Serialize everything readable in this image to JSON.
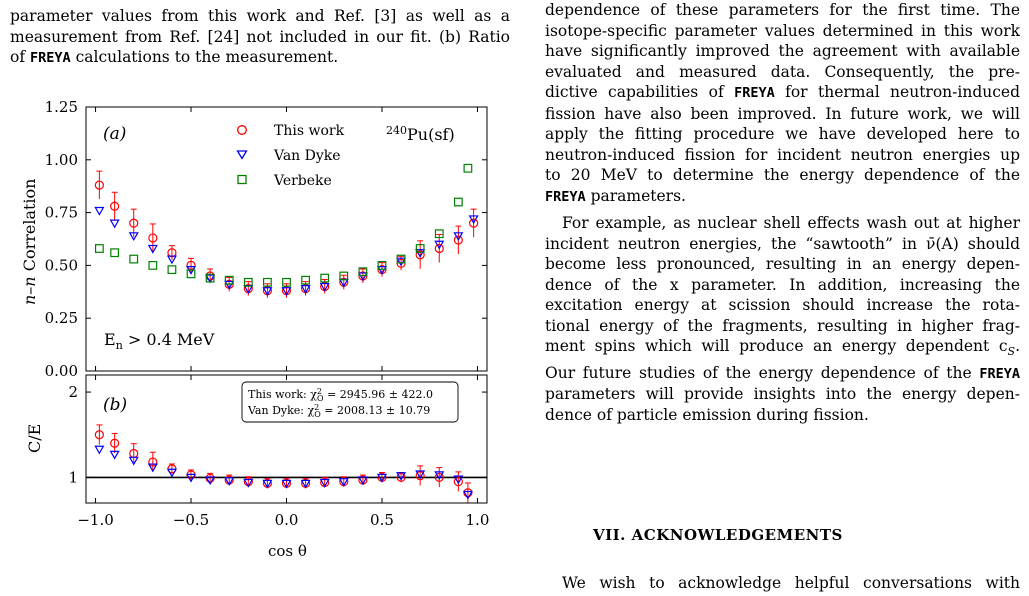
{
  "left_caption": {
    "line1": "parameter values from this work and Ref. [3] as well as a",
    "line2": "measurement from Ref. [24] not included in our fit. (b) Ratio",
    "line3_pre": "of ",
    "line3_code": "FREYA",
    "line3_post": " calculations to the measurement."
  },
  "right_column": {
    "p1_line0": "dependence of these parameters for the first time. The",
    "p1_line1": "isotope-specific parameter values determined in this work",
    "p1_line2": "have significantly improved the agreement with available",
    "p1_line3": "evaluated and measured data. Consequently, the pre-",
    "p1_line4_pre": "dictive capabilities of ",
    "p1_line4_code": "FREYA",
    "p1_line4_post": " for thermal neutron-induced",
    "p1_line5": "fission have also been improved. In future work, we will",
    "p1_line6": "apply the fitting procedure we have developed here to",
    "p1_line7": "neutron-induced fission for incident neutron energies up",
    "p1_line8": "to 20 MeV to determine the energy dependence of the",
    "p1_line9_code": "FREYA",
    "p1_line9_post": " parameters.",
    "p2_line0": "For example, as nuclear shell effects wash out at higher",
    "p2_line1": "incident neutron energies, the “sawtooth” in ν̄(A) should",
    "p2_line2": "become less pronounced, resulting in an energy depen-",
    "p2_line3": "dence of the x parameter. In addition, increasing the",
    "p2_line4": "excitation energy at scission should increase the rota-",
    "p2_line5": "tional energy of the fragments, resulting in higher frag-",
    "p2_line6": "ment spins which will produce an energy dependent c",
    "p2_line6_sub": "S",
    "p2_line6_end": ".",
    "p2_line7_pre": "Our future studies of the energy dependence of the ",
    "p2_line7_code": "FREYA",
    "p2_line8": "parameters will provide insights into the energy depen-",
    "p2_line9": "dence of particle emission during fission."
  },
  "ack": {
    "heading": "VII. ACKNOWLEDGEMENTS",
    "text": "We wish to acknowledge helpful conversations with"
  },
  "figure": {
    "panel_a_label": "(a)",
    "panel_b_label": "(b)",
    "isotope_label": "240Pu(sf)",
    "energy_cut": "En > 0.4 MeV",
    "ylabel_a": "n–n Correlation",
    "ylabel_b": "C/E",
    "xlabel": "cos θ",
    "legend": [
      "This work",
      "Van Dyke",
      "Verbeke"
    ],
    "chi_this_work": "This work: χ²O = 2945.96 ± 422.0",
    "chi_van_dyke": "Van Dyke: χ²O = 2008.13 ± 10.79",
    "colors": {
      "this_work": "#ff0000",
      "van_dyke": "#0000ff",
      "verbeke": "#008000"
    }
  },
  "chart_data": [
    {
      "type": "scatter",
      "panel": "a",
      "xlabel": "cos θ",
      "ylabel": "n–n Correlation",
      "xlim": [
        -1.05,
        1.05
      ],
      "ylim": [
        0.0,
        1.25
      ],
      "yticks": [
        0.0,
        0.25,
        0.5,
        0.75,
        1.0,
        1.25
      ],
      "xticks": [
        -1.0,
        -0.5,
        0.0,
        0.5,
        1.0
      ],
      "legend_position": "top-right",
      "series": [
        {
          "name": "This work",
          "marker": "circle",
          "x": [
            -0.98,
            -0.9,
            -0.8,
            -0.7,
            -0.6,
            -0.5,
            -0.4,
            -0.3,
            -0.2,
            -0.1,
            0.0,
            0.1,
            0.2,
            0.3,
            0.4,
            0.5,
            0.6,
            0.7,
            0.8,
            0.9,
            0.98
          ],
          "y": [
            0.88,
            0.78,
            0.7,
            0.63,
            0.56,
            0.5,
            0.45,
            0.41,
            0.39,
            0.38,
            0.38,
            0.39,
            0.4,
            0.42,
            0.45,
            0.48,
            0.51,
            0.55,
            0.58,
            0.62,
            0.7
          ]
        },
        {
          "name": "Van Dyke",
          "marker": "triangle-down",
          "x": [
            -0.98,
            -0.9,
            -0.8,
            -0.7,
            -0.6,
            -0.5,
            -0.4,
            -0.3,
            -0.2,
            -0.1,
            0.0,
            0.1,
            0.2,
            0.3,
            0.4,
            0.5,
            0.6,
            0.7,
            0.8,
            0.9,
            0.98
          ],
          "y": [
            0.76,
            0.7,
            0.64,
            0.58,
            0.53,
            0.48,
            0.44,
            0.41,
            0.39,
            0.38,
            0.38,
            0.39,
            0.4,
            0.42,
            0.45,
            0.48,
            0.52,
            0.56,
            0.6,
            0.64,
            0.72
          ]
        },
        {
          "name": "Verbeke",
          "marker": "square",
          "x": [
            -0.98,
            -0.9,
            -0.8,
            -0.7,
            -0.6,
            -0.5,
            -0.4,
            -0.3,
            -0.2,
            -0.1,
            0.0,
            0.1,
            0.2,
            0.3,
            0.4,
            0.5,
            0.6,
            0.7,
            0.8,
            0.9,
            0.95
          ],
          "y": [
            0.58,
            0.56,
            0.53,
            0.5,
            0.48,
            0.46,
            0.44,
            0.43,
            0.42,
            0.42,
            0.42,
            0.43,
            0.44,
            0.45,
            0.47,
            0.5,
            0.53,
            0.58,
            0.65,
            0.8,
            0.96
          ]
        }
      ]
    },
    {
      "type": "scatter",
      "panel": "b",
      "xlabel": "cos θ",
      "ylabel": "C/E",
      "xlim": [
        -1.05,
        1.05
      ],
      "ylim": [
        0.7,
        2.2
      ],
      "yticks": [
        1,
        2
      ],
      "xticks": [
        -1.0,
        -0.5,
        0.0,
        0.5,
        1.0
      ],
      "reference_line": 1,
      "series": [
        {
          "name": "This work",
          "marker": "circle",
          "x": [
            -0.98,
            -0.9,
            -0.8,
            -0.7,
            -0.6,
            -0.5,
            -0.4,
            -0.3,
            -0.2,
            -0.1,
            0.0,
            0.1,
            0.2,
            0.3,
            0.4,
            0.5,
            0.6,
            0.7,
            0.8,
            0.9,
            0.95
          ],
          "y": [
            1.5,
            1.4,
            1.28,
            1.18,
            1.1,
            1.03,
            0.99,
            0.97,
            0.95,
            0.93,
            0.93,
            0.93,
            0.94,
            0.95,
            0.97,
            1.0,
            1.0,
            1.02,
            1.0,
            0.95,
            0.82
          ]
        },
        {
          "name": "Van Dyke",
          "marker": "triangle-down",
          "x": [
            -0.98,
            -0.9,
            -0.8,
            -0.7,
            -0.6,
            -0.5,
            -0.4,
            -0.3,
            -0.2,
            -0.1,
            0.0,
            0.1,
            0.2,
            0.3,
            0.4,
            0.5,
            0.6,
            0.7,
            0.8,
            0.9,
            0.95
          ],
          "y": [
            1.33,
            1.27,
            1.2,
            1.12,
            1.06,
            1.0,
            0.97,
            0.96,
            0.94,
            0.93,
            0.93,
            0.93,
            0.94,
            0.95,
            0.97,
            1.0,
            1.02,
            1.04,
            1.03,
            0.98,
            0.8
          ]
        }
      ]
    }
  ]
}
